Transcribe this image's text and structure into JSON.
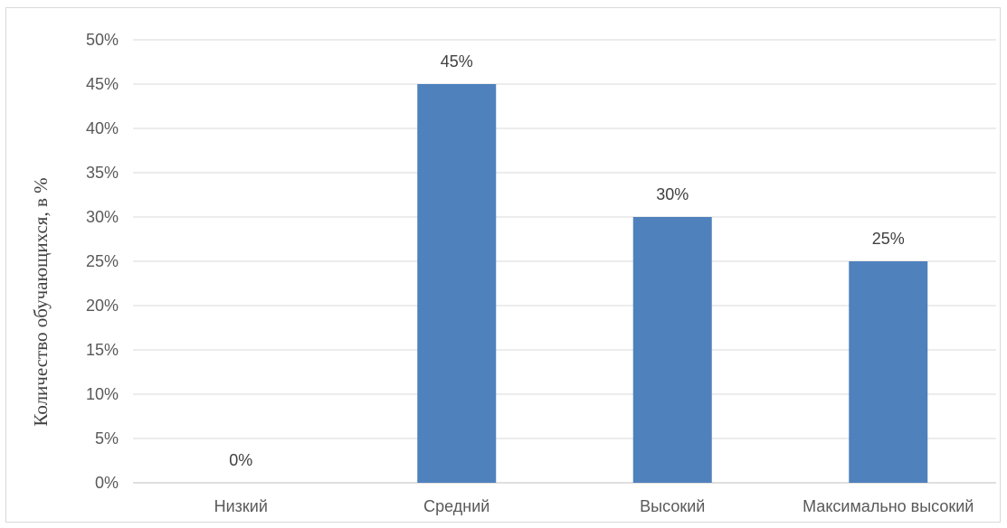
{
  "chart_data": {
    "type": "bar",
    "title": "",
    "xlabel": "",
    "ylabel": "Количество обучающихся, в %",
    "categories": [
      "Низкий",
      "Средний",
      "Высокий",
      "Максимально высокий"
    ],
    "values": [
      0,
      45,
      30,
      25
    ],
    "data_labels": [
      "0%",
      "45%",
      "30%",
      "25%"
    ],
    "ylim": [
      0,
      50
    ],
    "yticks": [
      0,
      5,
      10,
      15,
      20,
      25,
      30,
      35,
      40,
      45,
      50
    ],
    "ytick_labels": [
      "0%",
      "5%",
      "10%",
      "15%",
      "20%",
      "25%",
      "30%",
      "35%",
      "40%",
      "45%",
      "50%"
    ],
    "grid": true,
    "legend": "none",
    "bar_color": "#4f81bd",
    "grid_color": "#d9d9d9",
    "text_color": "#595959"
  }
}
